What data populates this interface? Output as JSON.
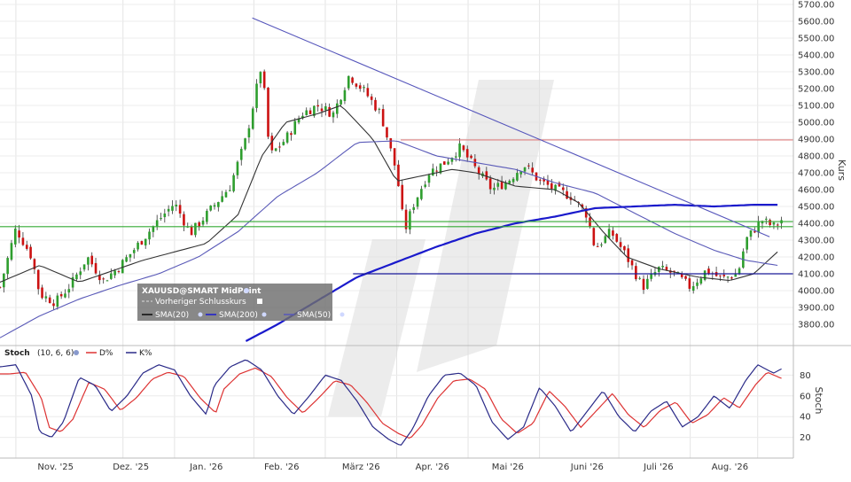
{
  "chart_data": [
    {
      "type": "candlestick",
      "symbol": "XAUUSD@SMART MidPoint",
      "ylabel": "Kurs",
      "ylim": [
        3700,
        5700
      ],
      "yticks": [
        3800,
        3900,
        4000,
        4100,
        4200,
        4300,
        4400,
        4500,
        4600,
        4700,
        4800,
        4900,
        5000,
        5100,
        5200,
        5300,
        5400,
        5500,
        5600,
        5700
      ],
      "ytick_labels": [
        "3800.00",
        "3900.00",
        "4000.00",
        "4100.00",
        "4200.00",
        "4300.00",
        "4400.00",
        "4500.00",
        "4600.00",
        "4700.00",
        "4800.00",
        "4900.00",
        "5000.00",
        "5100.00",
        "5200.00",
        "5300.00",
        "5400.00",
        "5500.00",
        "5600.00",
        "5700.00"
      ],
      "x_labels": [
        "Nov. '25",
        "Dez. '25",
        "Jan. '26",
        "Feb. '26",
        "März '26",
        "Apr. '26",
        "Mai '26",
        "Juni '26",
        "Juli '26",
        "Aug. '26"
      ],
      "grid": true,
      "legend": {
        "position": "bottom-left",
        "title": "XAUUSD@SMART MidPoint",
        "entries": [
          {
            "label": "Vorheriger Schlusskurs",
            "style": "dashed",
            "color": "#555555"
          },
          {
            "label": "SMA(20)",
            "color": "#333333"
          },
          {
            "label": "SMA(200)",
            "color": "#1a1acc"
          },
          {
            "label": "SMA(50)",
            "color": "#5a5ab8"
          }
        ]
      },
      "colors": {
        "up": "#2e9e2e",
        "down": "#cc1111",
        "sma20": "#333333",
        "sma50": "#5a5ab8",
        "sma200": "#1a1acc",
        "trendline": "#5555bb",
        "resistance": "#e08080",
        "support_green": "#33aa33",
        "support_blue": "#1a1a99"
      },
      "levels": {
        "resistance": 4895,
        "support_upper": 4410,
        "support_lower": 4380,
        "support_blue": 4100
      },
      "trendline": {
        "from": {
          "date_index": 0,
          "value": 5620
        },
        "to": {
          "date_index": 1,
          "value": 4320
        }
      },
      "series": [
        {
          "name": "SMA(20)",
          "anchors": [
            [
              0,
              4050
            ],
            [
              0.05,
              4150
            ],
            [
              0.1,
              4050
            ],
            [
              0.18,
              4180
            ],
            [
              0.26,
              4280
            ],
            [
              0.3,
              4450
            ],
            [
              0.33,
              4800
            ],
            [
              0.36,
              5000
            ],
            [
              0.4,
              5050
            ],
            [
              0.43,
              5100
            ],
            [
              0.47,
              4900
            ],
            [
              0.5,
              4650
            ],
            [
              0.53,
              4680
            ],
            [
              0.57,
              4720
            ],
            [
              0.6,
              4700
            ],
            [
              0.65,
              4620
            ],
            [
              0.7,
              4600
            ],
            [
              0.73,
              4520
            ],
            [
              0.76,
              4350
            ],
            [
              0.79,
              4200
            ],
            [
              0.83,
              4130
            ],
            [
              0.88,
              4080
            ],
            [
              0.92,
              4060
            ],
            [
              0.95,
              4100
            ],
            [
              0.98,
              4230
            ]
          ]
        },
        {
          "name": "SMA(50)",
          "anchors": [
            [
              0,
              3720
            ],
            [
              0.05,
              3850
            ],
            [
              0.1,
              3950
            ],
            [
              0.15,
              4030
            ],
            [
              0.2,
              4100
            ],
            [
              0.25,
              4200
            ],
            [
              0.3,
              4350
            ],
            [
              0.35,
              4560
            ],
            [
              0.4,
              4700
            ],
            [
              0.45,
              4880
            ],
            [
              0.5,
              4890
            ],
            [
              0.55,
              4800
            ],
            [
              0.6,
              4760
            ],
            [
              0.65,
              4720
            ],
            [
              0.7,
              4640
            ],
            [
              0.75,
              4580
            ],
            [
              0.8,
              4460
            ],
            [
              0.85,
              4340
            ],
            [
              0.9,
              4240
            ],
            [
              0.94,
              4180
            ],
            [
              0.98,
              4150
            ]
          ]
        },
        {
          "name": "SMA(200)",
          "anchors": [
            [
              0.31,
              3700
            ],
            [
              0.35,
              3800
            ],
            [
              0.4,
              3940
            ],
            [
              0.45,
              4080
            ],
            [
              0.5,
              4170
            ],
            [
              0.55,
              4260
            ],
            [
              0.6,
              4340
            ],
            [
              0.65,
              4400
            ],
            [
              0.7,
              4440
            ],
            [
              0.75,
              4490
            ],
            [
              0.8,
              4500
            ],
            [
              0.85,
              4510
            ],
            [
              0.9,
              4500
            ],
            [
              0.95,
              4510
            ],
            [
              0.98,
              4510
            ]
          ]
        }
      ]
    },
    {
      "type": "line",
      "title": "Stoch",
      "params": "(10, 6, 6)",
      "ylabel": "Stoch",
      "ylim": [
        0,
        100
      ],
      "yticks": [
        20,
        40,
        60,
        80
      ],
      "colors": {
        "D": "#dd3333",
        "K": "#2a2a88"
      },
      "series": [
        {
          "name": "D%",
          "color": "#dd3333"
        },
        {
          "name": "K%",
          "color": "#2a2a88"
        }
      ]
    }
  ]
}
